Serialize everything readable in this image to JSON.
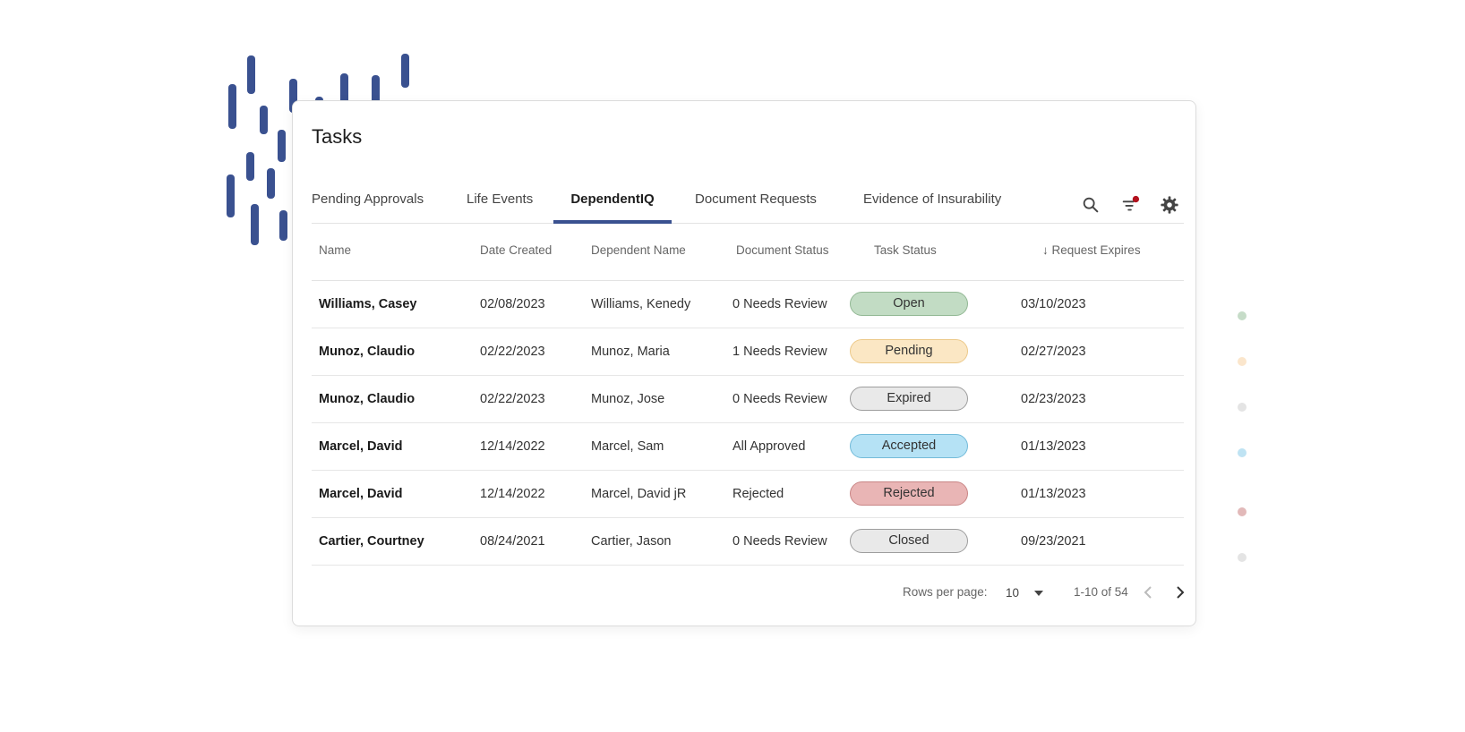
{
  "card": {
    "title": "Tasks"
  },
  "tabs": [
    {
      "label": "Pending Approvals",
      "active": false
    },
    {
      "label": "Life Events",
      "active": false
    },
    {
      "label": "DependentIQ",
      "active": true
    },
    {
      "label": "Document Requests",
      "active": false
    },
    {
      "label": "Evidence of Insurability",
      "active": false
    }
  ],
  "toolbar": {
    "icons": [
      "search-icon",
      "filter-icon",
      "gear-icon"
    ],
    "filter_badge_color": "#b3121e"
  },
  "columns": [
    "Name",
    "Date Created",
    "Dependent Name",
    "Document Status",
    "Task Status",
    "Request Expires"
  ],
  "sort_indicator": "↓",
  "rows": [
    {
      "name": "Williams, Casey",
      "date_created": "02/08/2023",
      "dependent": "Williams, Kenedy",
      "doc_status": "0 Needs Review",
      "task_status": "Open",
      "expires": "03/10/2023"
    },
    {
      "name": "Munoz, Claudio",
      "date_created": "02/22/2023",
      "dependent": "Munoz, Maria",
      "doc_status": "1 Needs Review",
      "task_status": "Pending",
      "expires": "02/27/2023"
    },
    {
      "name": "Munoz, Claudio",
      "date_created": "02/22/2023",
      "dependent": "Munoz, Jose",
      "doc_status": "0 Needs Review",
      "task_status": "Expired",
      "expires": "02/23/2023"
    },
    {
      "name": "Marcel, David",
      "date_created": "12/14/2022",
      "dependent": "Marcel, Sam",
      "doc_status": "All Approved",
      "task_status": "Accepted",
      "expires": "01/13/2023"
    },
    {
      "name": "Marcel, David",
      "date_created": "12/14/2022",
      "dependent": "Marcel, David jR",
      "doc_status": "Rejected",
      "task_status": "Rejected",
      "expires": "01/13/2023"
    },
    {
      "name": "Cartier, Courtney",
      "date_created": "08/24/2021",
      "dependent": "Cartier, Jason",
      "doc_status": "0 Needs Review",
      "task_status": "Closed",
      "expires": "09/23/2021"
    }
  ],
  "status_colors": {
    "Open": {
      "bg": "#c2dcc4",
      "border": "#92b894"
    },
    "Pending": {
      "bg": "#fbe7c4",
      "border": "#ecc98a"
    },
    "Expired": {
      "bg": "#e9e9e9",
      "border": "#9d9d9d"
    },
    "Accepted": {
      "bg": "#b5e2f5",
      "border": "#73bbd9"
    },
    "Rejected": {
      "bg": "#e9b5b5",
      "border": "#c98686"
    },
    "Closed": {
      "bg": "#e9e9e9",
      "border": "#9d9d9d"
    }
  },
  "pagination": {
    "rows_per_page_label": "Rows per page:",
    "rows_per_page": "10",
    "range": "1-10 of 54"
  },
  "colors": {
    "accent": "#3a5190"
  },
  "decor_dots": [
    "#c6dcc8",
    "#fbe6cc",
    "#e4e4e4",
    "#bfe3f3",
    "#e2b9b9",
    "#e4e4e4"
  ]
}
